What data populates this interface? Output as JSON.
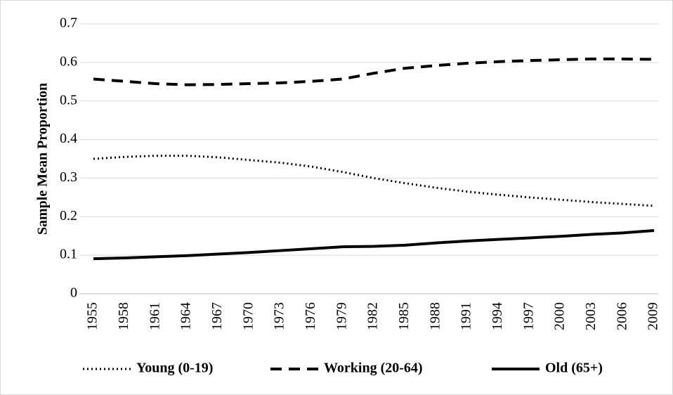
{
  "chart_data": {
    "type": "line",
    "y_label": "Sample Mean Proportion",
    "x": [
      1955,
      1958,
      1961,
      1964,
      1967,
      1970,
      1973,
      1976,
      1979,
      1982,
      1985,
      1988,
      1991,
      1994,
      1997,
      2000,
      2003,
      2006,
      2009
    ],
    "xlim": [
      1955,
      2009
    ],
    "xticks": [
      1955,
      1958,
      1961,
      1964,
      1967,
      1970,
      1973,
      1976,
      1979,
      1982,
      1985,
      1988,
      1991,
      1994,
      1997,
      2000,
      2003,
      2006,
      2009
    ],
    "ylim": [
      0,
      0.7
    ],
    "yticks": [
      0,
      0.1,
      0.2,
      0.3,
      0.4,
      0.5,
      0.6,
      0.7
    ],
    "grid": true,
    "legend": "bottom",
    "series": [
      {
        "name": "Young (0-19)",
        "color": "#000000",
        "dash": "dotted",
        "values": [
          0.35,
          0.355,
          0.358,
          0.358,
          0.354,
          0.347,
          0.34,
          0.33,
          0.316,
          0.3,
          0.287,
          0.275,
          0.265,
          0.257,
          0.25,
          0.244,
          0.238,
          0.233,
          0.228
        ]
      },
      {
        "name": "Working (20-64)",
        "color": "#000000",
        "dash": "dashed",
        "values": [
          0.557,
          0.551,
          0.545,
          0.542,
          0.543,
          0.545,
          0.547,
          0.551,
          0.557,
          0.572,
          0.585,
          0.592,
          0.598,
          0.602,
          0.605,
          0.607,
          0.609,
          0.609,
          0.608
        ]
      },
      {
        "name": "Old (65+)",
        "color": "#000000",
        "dash": "solid",
        "values": [
          0.091,
          0.093,
          0.096,
          0.099,
          0.103,
          0.107,
          0.112,
          0.117,
          0.122,
          0.123,
          0.126,
          0.132,
          0.137,
          0.141,
          0.145,
          0.149,
          0.154,
          0.158,
          0.164
        ]
      }
    ]
  }
}
